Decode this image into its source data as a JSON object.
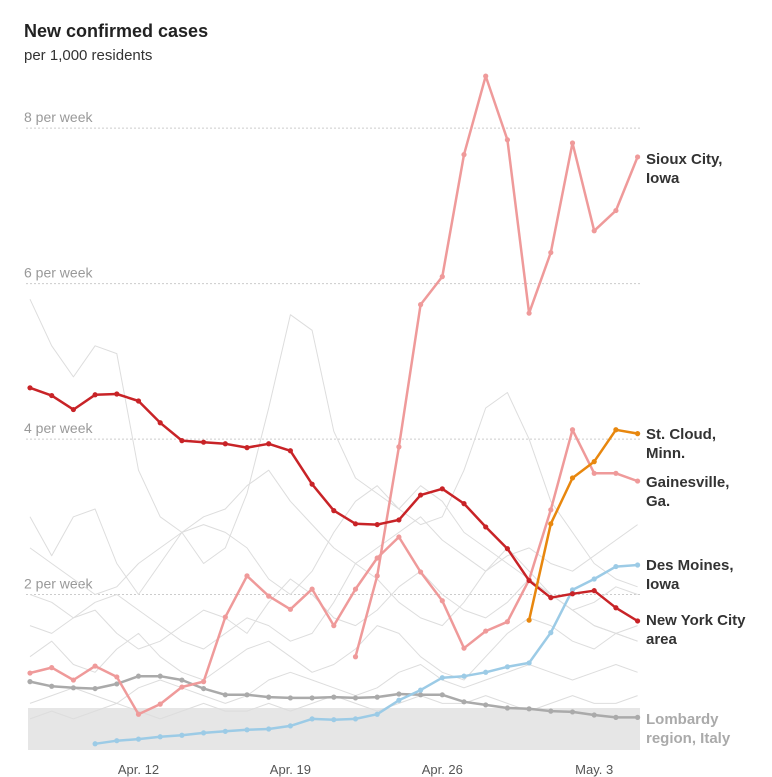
{
  "chart_data": {
    "type": "line",
    "title": "New confirmed cases",
    "subtitle": "per 1,000 residents",
    "categories": [
      null,
      null,
      null,
      null,
      null,
      "Apr. 12",
      null,
      null,
      null,
      null,
      null,
      null,
      "Apr. 19",
      null,
      null,
      null,
      null,
      null,
      null,
      "Apr. 26",
      null,
      null,
      null,
      null,
      null,
      null,
      "May. 3",
      null,
      null
    ],
    "ylim": [
      0,
      8.8
    ],
    "yticks": [
      {
        "value": 2,
        "label": "2 per week"
      },
      {
        "value": 4,
        "label": "4 per week"
      },
      {
        "value": 6,
        "label": "6 per week"
      },
      {
        "value": 8,
        "label": "8 per week"
      }
    ],
    "grid": true,
    "series": [
      {
        "color": "#dddddd",
        "values": [
          5.8,
          5.2,
          4.8,
          5.2,
          5.1,
          3.6,
          3.0,
          2.8,
          2.4,
          2.6,
          3.3,
          4.4,
          5.6,
          5.4,
          4.1,
          3.5,
          3.3,
          3.1,
          3.4,
          3.2,
          2.8,
          2.6,
          2.4,
          2.2,
          2.0,
          1.8,
          1.6,
          1.5,
          1.4
        ]
      },
      {
        "color": "#dddddd",
        "values": [
          3.0,
          2.5,
          3.0,
          3.1,
          2.4,
          2.0,
          2.4,
          2.8,
          2.9,
          2.8,
          2.6,
          2.2,
          2.0,
          2.3,
          2.8,
          3.2,
          3.4,
          3.1,
          2.9,
          3.0,
          3.6,
          4.4,
          4.6,
          4.0,
          3.2,
          2.8,
          2.4,
          2.2,
          2.1
        ]
      },
      {
        "color": "#dddddd",
        "values": [
          2.0,
          1.9,
          1.7,
          1.8,
          1.5,
          1.3,
          1.4,
          1.6,
          1.8,
          1.7,
          1.5,
          1.9,
          2.2,
          2.0,
          1.7,
          1.6,
          1.8,
          2.1,
          2.3,
          2.0,
          1.8,
          1.7,
          1.9,
          2.2,
          2.0,
          1.8,
          1.6,
          1.5,
          1.6
        ]
      },
      {
        "color": "#dddddd",
        "values": [
          1.2,
          1.4,
          1.1,
          1.0,
          1.3,
          1.5,
          1.2,
          1.0,
          0.9,
          1.1,
          1.3,
          1.4,
          1.2,
          1.0,
          1.1,
          1.3,
          1.6,
          1.5,
          1.2,
          1.0,
          0.9,
          1.2,
          1.5,
          1.7,
          1.6,
          1.4,
          1.3,
          1.5,
          1.4
        ]
      },
      {
        "color": "#dddddd",
        "values": [
          0.6,
          0.7,
          0.8,
          0.7,
          0.6,
          0.8,
          0.9,
          0.8,
          0.7,
          0.6,
          0.7,
          0.9,
          1.0,
          0.9,
          0.8,
          0.7,
          0.8,
          1.0,
          1.1,
          0.9,
          0.8,
          0.9,
          1.0,
          1.1,
          1.0,
          0.9,
          1.0,
          1.1,
          1.0
        ]
      },
      {
        "color": "#dddddd",
        "values": [
          2.6,
          2.4,
          2.2,
          2.0,
          2.1,
          2.4,
          2.6,
          2.8,
          3.0,
          3.1,
          3.4,
          3.6,
          3.2,
          2.9,
          2.6,
          2.4,
          2.6,
          2.8,
          3.0,
          2.7,
          2.5,
          2.3,
          2.5,
          2.6,
          2.4,
          2.3,
          2.5,
          2.7,
          2.9
        ]
      },
      {
        "color": "#dddddd",
        "values": [
          1.6,
          1.5,
          1.7,
          1.9,
          2.0,
          1.8,
          1.6,
          1.4,
          1.3,
          1.5,
          1.7,
          1.6,
          1.4,
          1.5,
          1.9,
          2.4,
          2.2,
          1.9,
          1.7,
          1.6,
          1.9,
          2.3,
          2.6,
          2.3,
          2.0,
          1.8,
          1.9,
          2.1,
          2.0
        ]
      },
      {
        "color": "#dddddd",
        "values": [
          0.4,
          0.5,
          0.4,
          0.5,
          0.6,
          0.5,
          0.4,
          0.5,
          0.6,
          0.5,
          0.5,
          0.6,
          0.5,
          0.6,
          0.7,
          0.6,
          0.5,
          0.6,
          0.7,
          0.6,
          0.6,
          0.7,
          0.6,
          0.5,
          0.6,
          0.7,
          0.6,
          0.6,
          0.7
        ]
      },
      {
        "name": "Lombardy region, Italy",
        "color": "#aaaaaa",
        "values": [
          0.88,
          0.82,
          0.8,
          0.79,
          0.85,
          0.95,
          0.95,
          0.9,
          0.79,
          0.71,
          0.71,
          0.68,
          0.67,
          0.67,
          0.68,
          0.67,
          0.68,
          0.72,
          0.71,
          0.71,
          0.62,
          0.58,
          0.54,
          0.53,
          0.5,
          0.49,
          0.45,
          0.42,
          0.42
        ]
      },
      {
        "name": "Des Moines, Iowa",
        "color": "#9ccbe6",
        "values": [
          null,
          null,
          null,
          0.08,
          0.12,
          0.14,
          0.17,
          0.19,
          0.22,
          0.24,
          0.26,
          0.27,
          0.31,
          0.4,
          0.39,
          0.4,
          0.46,
          0.64,
          0.77,
          0.93,
          0.95,
          1.0,
          1.07,
          1.12,
          1.51,
          2.06,
          2.2,
          2.36,
          2.38
        ]
      },
      {
        "name": "Gainesville, Ga.",
        "color": "#ef9a9a",
        "values": [
          0.99,
          1.06,
          0.9,
          1.08,
          0.94,
          0.46,
          0.59,
          0.81,
          0.88,
          1.71,
          2.24,
          1.98,
          1.81,
          2.07,
          1.6,
          2.07,
          2.47,
          2.74,
          2.29,
          1.92,
          1.31,
          1.53,
          1.65,
          2.19,
          3.09,
          4.12,
          3.56,
          3.56,
          3.46
        ]
      },
      {
        "name": "Sioux City, Iowa",
        "color": "#ef9a9a",
        "values": [
          null,
          null,
          null,
          null,
          null,
          null,
          null,
          null,
          null,
          null,
          null,
          null,
          null,
          null,
          null,
          1.2,
          2.24,
          3.9,
          5.73,
          6.09,
          7.66,
          8.67,
          7.85,
          5.62,
          6.4,
          7.81,
          6.68,
          6.94,
          7.63
        ]
      },
      {
        "name": "New York City area",
        "color": "#c82327",
        "values": [
          4.66,
          4.56,
          4.38,
          4.57,
          4.58,
          4.49,
          4.21,
          3.98,
          3.96,
          3.94,
          3.89,
          3.94,
          3.85,
          3.42,
          3.08,
          2.91,
          2.9,
          2.96,
          3.28,
          3.36,
          3.17,
          2.87,
          2.59,
          2.18,
          1.96,
          2.01,
          2.05,
          1.83,
          1.66
        ]
      },
      {
        "name": "St. Cloud, Minn.",
        "color": "#e8870e",
        "values": [
          null,
          null,
          null,
          null,
          null,
          null,
          null,
          null,
          null,
          null,
          null,
          null,
          null,
          null,
          null,
          null,
          null,
          null,
          null,
          null,
          null,
          null,
          null,
          1.67,
          2.91,
          3.5,
          3.71,
          4.12,
          4.07
        ]
      }
    ]
  }
}
